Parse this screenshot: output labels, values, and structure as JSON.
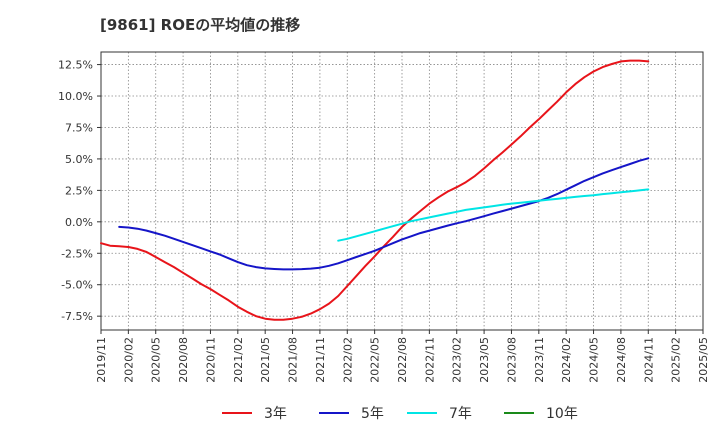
{
  "title": "[9861]  ROEの平均値の推移",
  "chart_data": {
    "type": "line",
    "title": "[9861]  ROEの平均値の推移",
    "xlabel": "",
    "ylabel": "",
    "x_ticks": [
      "2019/11",
      "2020/02",
      "2020/05",
      "2020/08",
      "2020/11",
      "2021/02",
      "2021/05",
      "2021/08",
      "2021/11",
      "2022/02",
      "2022/05",
      "2022/08",
      "2022/11",
      "2023/02",
      "2023/05",
      "2023/08",
      "2023/11",
      "2024/02",
      "2024/05",
      "2024/08",
      "2024/11",
      "2025/02",
      "2025/05"
    ],
    "y_ticks": [
      -7.5,
      -5.0,
      -2.5,
      0.0,
      2.5,
      5.0,
      7.5,
      10.0,
      12.5
    ],
    "y_tick_labels": [
      "-7.5%",
      "-5.0%",
      "-2.5%",
      "0.0%",
      "2.5%",
      "5.0%",
      "7.5%",
      "10.0%",
      "12.5%"
    ],
    "ylim": [
      -8.6,
      13.5
    ],
    "grid": true,
    "legend_position": "bottom",
    "series": [
      {
        "name": "3年",
        "color": "#e8141a",
        "x": [
          "2019/11",
          "2019/12",
          "2020/01",
          "2020/02",
          "2020/03",
          "2020/04",
          "2020/05",
          "2020/06",
          "2020/07",
          "2020/08",
          "2020/09",
          "2020/10",
          "2020/11",
          "2020/12",
          "2021/01",
          "2021/02",
          "2021/03",
          "2021/04",
          "2021/05",
          "2021/06",
          "2021/07",
          "2021/08",
          "2021/09",
          "2021/10",
          "2021/11",
          "2021/12",
          "2022/01",
          "2022/02",
          "2022/03",
          "2022/04",
          "2022/05",
          "2022/06",
          "2022/07",
          "2022/08",
          "2022/09",
          "2022/10",
          "2022/11",
          "2022/12",
          "2023/01",
          "2023/02",
          "2023/03",
          "2023/04",
          "2023/05",
          "2023/06",
          "2023/07",
          "2023/08",
          "2023/09",
          "2023/10",
          "2023/11",
          "2023/12",
          "2024/01",
          "2024/02",
          "2024/03",
          "2024/04",
          "2024/05",
          "2024/06",
          "2024/07",
          "2024/08",
          "2024/09",
          "2024/10",
          "2024/11"
        ],
        "values": [
          -1.7,
          -1.9,
          -1.95,
          -2.0,
          -2.15,
          -2.4,
          -2.8,
          -3.2,
          -3.6,
          -4.05,
          -4.5,
          -4.95,
          -5.35,
          -5.8,
          -6.25,
          -6.75,
          -7.15,
          -7.5,
          -7.7,
          -7.78,
          -7.78,
          -7.7,
          -7.55,
          -7.3,
          -6.95,
          -6.5,
          -5.9,
          -5.1,
          -4.3,
          -3.5,
          -2.75,
          -1.95,
          -1.2,
          -0.4,
          0.25,
          0.85,
          1.45,
          1.95,
          2.4,
          2.75,
          3.15,
          3.65,
          4.25,
          4.9,
          5.5,
          6.15,
          6.8,
          7.5,
          8.15,
          8.85,
          9.55,
          10.3,
          10.95,
          11.5,
          11.95,
          12.3,
          12.55,
          12.75,
          12.82,
          12.82,
          12.75
        ]
      },
      {
        "name": "5年",
        "color": "#1515c8",
        "x": [
          "2020/01",
          "2020/02",
          "2020/03",
          "2020/04",
          "2020/05",
          "2020/06",
          "2020/07",
          "2020/08",
          "2020/09",
          "2020/10",
          "2020/11",
          "2020/12",
          "2021/01",
          "2021/02",
          "2021/03",
          "2021/04",
          "2021/05",
          "2021/06",
          "2021/07",
          "2021/08",
          "2021/09",
          "2021/10",
          "2021/11",
          "2021/12",
          "2022/01",
          "2022/02",
          "2022/03",
          "2022/04",
          "2022/05",
          "2022/06",
          "2022/07",
          "2022/08",
          "2022/09",
          "2022/10",
          "2022/11",
          "2022/12",
          "2023/01",
          "2023/02",
          "2023/03",
          "2023/04",
          "2023/05",
          "2023/06",
          "2023/07",
          "2023/08",
          "2023/09",
          "2023/10",
          "2023/11",
          "2023/12",
          "2024/01",
          "2024/02",
          "2024/03",
          "2024/04",
          "2024/05",
          "2024/06",
          "2024/07",
          "2024/08",
          "2024/09",
          "2024/10",
          "2024/11"
        ],
        "values": [
          -0.4,
          -0.45,
          -0.55,
          -0.7,
          -0.9,
          -1.1,
          -1.35,
          -1.6,
          -1.85,
          -2.1,
          -2.35,
          -2.6,
          -2.9,
          -3.2,
          -3.45,
          -3.6,
          -3.7,
          -3.75,
          -3.78,
          -3.78,
          -3.76,
          -3.72,
          -3.65,
          -3.5,
          -3.3,
          -3.05,
          -2.8,
          -2.55,
          -2.3,
          -2.0,
          -1.7,
          -1.4,
          -1.15,
          -0.9,
          -0.7,
          -0.5,
          -0.3,
          -0.12,
          0.05,
          0.25,
          0.45,
          0.65,
          0.85,
          1.05,
          1.25,
          1.45,
          1.65,
          1.9,
          2.2,
          2.55,
          2.9,
          3.25,
          3.55,
          3.85,
          4.1,
          4.35,
          4.6,
          4.85,
          5.05
        ]
      },
      {
        "name": "7年",
        "color": "#00e5e5",
        "x": [
          "2022/01",
          "2022/02",
          "2022/03",
          "2022/04",
          "2022/05",
          "2022/06",
          "2022/07",
          "2022/08",
          "2022/09",
          "2022/10",
          "2022/11",
          "2022/12",
          "2023/01",
          "2023/02",
          "2023/03",
          "2023/04",
          "2023/05",
          "2023/06",
          "2023/07",
          "2023/08",
          "2023/09",
          "2023/10",
          "2023/11",
          "2023/12",
          "2024/01",
          "2024/02",
          "2024/03",
          "2024/04",
          "2024/05",
          "2024/06",
          "2024/07",
          "2024/08",
          "2024/09",
          "2024/10",
          "2024/11"
        ],
        "values": [
          -1.5,
          -1.35,
          -1.15,
          -0.95,
          -0.75,
          -0.55,
          -0.35,
          -0.15,
          0.05,
          0.2,
          0.35,
          0.5,
          0.65,
          0.8,
          0.95,
          1.05,
          1.15,
          1.25,
          1.35,
          1.45,
          1.52,
          1.6,
          1.68,
          1.75,
          1.82,
          1.9,
          1.98,
          2.05,
          2.12,
          2.2,
          2.27,
          2.35,
          2.42,
          2.5,
          2.58
        ]
      },
      {
        "name": "10年",
        "color": "#1a8a1a",
        "x": [],
        "values": []
      }
    ]
  }
}
